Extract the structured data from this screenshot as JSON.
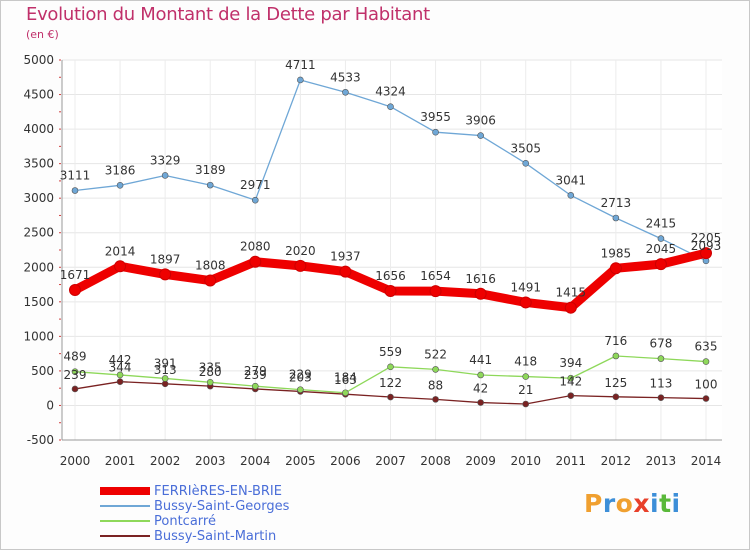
{
  "title": "Evolution du Montant de la Dette par Habitant",
  "unit_label": "(en €)",
  "brand": {
    "text": "Proxiti",
    "letters": [
      {
        "ch": "P",
        "color": "#f0a030"
      },
      {
        "ch": "r",
        "color": "#3d8fd8"
      },
      {
        "ch": "o",
        "color": "#f0a030"
      },
      {
        "ch": "x",
        "color": "#e8402a"
      },
      {
        "ch": "i",
        "color": "#3d8fd8"
      },
      {
        "ch": "t",
        "color": "#5ab93a"
      },
      {
        "ch": "i",
        "color": "#3d8fd8"
      }
    ]
  },
  "chart_data": {
    "type": "line",
    "title": "Evolution du Montant de la Dette par Habitant",
    "ylabel": "(en €)",
    "xlabel": "",
    "x": [
      "2000",
      "2001",
      "2002",
      "2003",
      "2004",
      "2005",
      "2006",
      "2007",
      "2008",
      "2009",
      "2010",
      "2011",
      "2012",
      "2013",
      "2014"
    ],
    "ylim": [
      -500,
      5000
    ],
    "yticks": [
      "-500",
      "0",
      "500",
      "1000",
      "1500",
      "2000",
      "2500",
      "3000",
      "3500",
      "4000",
      "4500",
      "5000"
    ],
    "grid": true,
    "legend_position": "bottom-left",
    "series": [
      {
        "name": "FERRIèRES-EN-BRIE",
        "color": "#ee0000",
        "values": [
          1671,
          2014,
          1897,
          1808,
          2080,
          2020,
          1937,
          1656,
          1654,
          1616,
          1491,
          1415,
          1985,
          2045,
          2205
        ]
      },
      {
        "name": "Bussy-Saint-Georges",
        "color": "#6fa7d6",
        "values": [
          3111,
          3186,
          3329,
          3189,
          2971,
          4711,
          4533,
          4324,
          3955,
          3906,
          3505,
          3041,
          2713,
          2415,
          2093
        ]
      },
      {
        "name": "Pontcarré",
        "color": "#8ed85a",
        "values": [
          489,
          442,
          391,
          335,
          279,
          229,
          184,
          559,
          522,
          441,
          418,
          394,
          716,
          678,
          635
        ]
      },
      {
        "name": "Bussy-Saint-Martin",
        "color": "#7a2222",
        "values": [
          239,
          344,
          313,
          280,
          239,
          203,
          163,
          122,
          88,
          42,
          21,
          142,
          125,
          113,
          100
        ]
      }
    ]
  }
}
